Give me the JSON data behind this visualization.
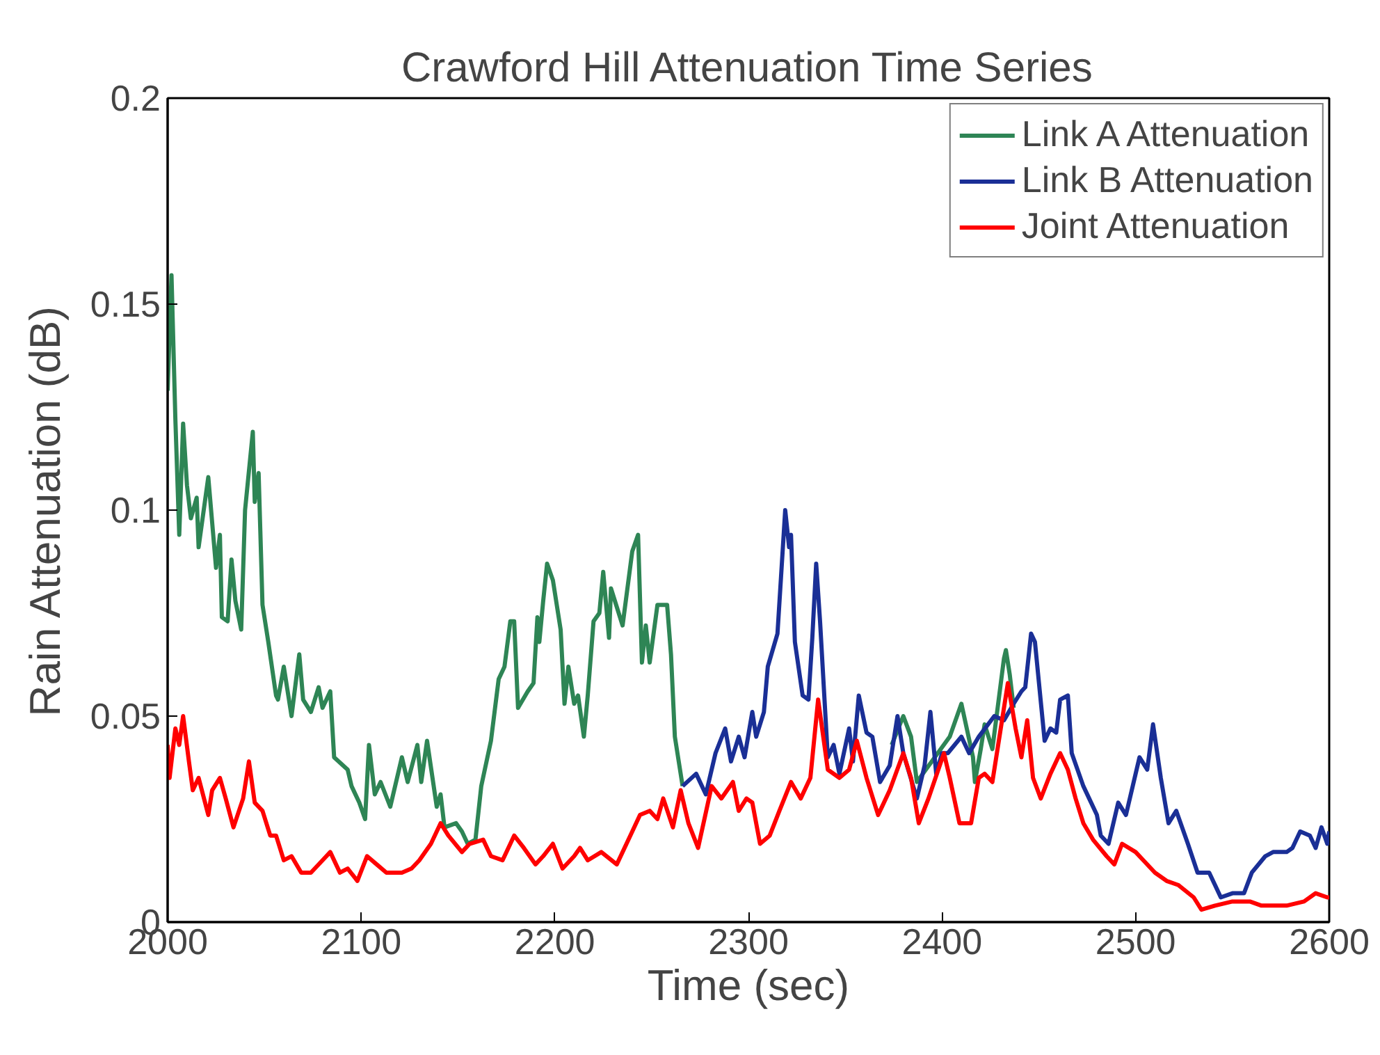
{
  "chart_data": {
    "type": "line",
    "title": "Crawford Hill Attenuation Time Series",
    "xlabel": "Time (sec)",
    "ylabel": "Rain Attenuation (dB)",
    "xlim": [
      2000,
      2600
    ],
    "xticks": [
      2000,
      2100,
      2200,
      2300,
      2400,
      2500,
      2600
    ],
    "ylim": [
      0,
      0.2
    ],
    "yticks": [
      0,
      0.05,
      0.1,
      0.15,
      0.2
    ],
    "grid": false,
    "legend": "top right",
    "line_style": "solid",
    "marker": "none",
    "series": [
      {
        "name": "Link A Attenuation",
        "color": "#2e8555",
        "x": [
          2000,
          2002,
          2004,
          2006,
          2008,
          2010,
          2012,
          2015,
          2016,
          2021,
          2023,
          2025,
          2027,
          2028,
          2031,
          2033,
          2035,
          2038,
          2040,
          2044,
          2045,
          2047,
          2049,
          2052,
          2056,
          2057,
          2060,
          2064,
          2068,
          2070,
          2074,
          2078,
          2080,
          2084,
          2086,
          2093,
          2095,
          2099,
          2102,
          2104,
          2107,
          2110,
          2115,
          2121,
          2124,
          2129,
          2131,
          2134,
          2139,
          2141,
          2143,
          2149,
          2152,
          2155,
          2159,
          2162,
          2167,
          2171,
          2174,
          2177,
          2179,
          2181,
          2186,
          2189,
          2191,
          2192,
          2194,
          2196,
          2199,
          2203,
          2205,
          2207,
          2210,
          2212,
          2215,
          2217,
          2220,
          2223,
          2225,
          2228,
          2229,
          2235,
          2240,
          2243,
          2245,
          2247,
          2249,
          2253,
          2258,
          2260,
          2262,
          2266,
          2320,
          2374,
          2380,
          2384,
          2387,
          2404,
          2410,
          2416,
          2417,
          2420,
          2422,
          2426,
          2432,
          2433,
          2435,
          2437
        ],
        "values": [
          0.129,
          0.157,
          0.122,
          0.094,
          0.121,
          0.106,
          0.098,
          0.103,
          0.091,
          0.108,
          0.097,
          0.086,
          0.094,
          0.074,
          0.073,
          0.088,
          0.078,
          0.071,
          0.1,
          0.119,
          0.102,
          0.109,
          0.077,
          0.068,
          0.055,
          0.054,
          0.062,
          0.05,
          0.065,
          0.054,
          0.051,
          0.057,
          0.052,
          0.056,
          0.04,
          0.037,
          0.033,
          0.029,
          0.025,
          0.043,
          0.031,
          0.034,
          0.028,
          0.04,
          0.034,
          0.043,
          0.034,
          0.044,
          0.028,
          0.031,
          0.023,
          0.024,
          0.022,
          0.019,
          0.02,
          0.033,
          0.044,
          0.059,
          0.062,
          0.073,
          0.073,
          0.052,
          0.056,
          0.058,
          0.074,
          0.068,
          0.078,
          0.087,
          0.083,
          0.071,
          0.053,
          0.062,
          0.053,
          0.055,
          0.045,
          0.055,
          0.073,
          0.075,
          0.085,
          0.069,
          0.081,
          0.072,
          0.09,
          0.094,
          0.063,
          0.072,
          0.063,
          0.077,
          0.077,
          0.065,
          0.045,
          0.033,
          null,
          0.043,
          0.05,
          0.045,
          0.034,
          0.045,
          0.053,
          0.04,
          0.034,
          0.042,
          0.048,
          0.042,
          0.064,
          0.066,
          0.06,
          0.052
        ]
      },
      {
        "name": "Link B Attenuation",
        "color": "#1a2f96",
        "x": [
          2266,
          2273,
          2278,
          2283,
          2288,
          2291,
          2295,
          2298,
          2302,
          2304,
          2308,
          2310,
          2315,
          2319,
          2321,
          2322,
          2324,
          2328,
          2331,
          2333,
          2335,
          2337,
          2341,
          2344,
          2347,
          2352,
          2354,
          2357,
          2361,
          2364,
          2368,
          2373,
          2377,
          2380,
          2387,
          2391,
          2394,
          2397,
          2400,
          2403,
          2410,
          2414,
          2419,
          2427,
          2432,
          2437,
          2441,
          2443,
          2446,
          2448,
          2453,
          2456,
          2459,
          2461,
          2465,
          2467,
          2473,
          2476,
          2480,
          2482,
          2486,
          2491,
          2495,
          2499,
          2502,
          2506,
          2509,
          2513,
          2517,
          2521,
          2527,
          2532,
          2538,
          2544,
          2550,
          2556,
          2560,
          2567,
          2571,
          2578,
          2581,
          2585,
          2590,
          2593,
          2596,
          2599,
          2600
        ],
        "values": [
          0.033,
          0.036,
          0.031,
          0.041,
          0.047,
          0.039,
          0.045,
          0.04,
          0.051,
          0.045,
          0.051,
          0.062,
          0.07,
          0.1,
          0.091,
          0.094,
          0.068,
          0.055,
          0.054,
          0.069,
          0.087,
          0.073,
          0.04,
          0.043,
          0.036,
          0.047,
          0.039,
          0.055,
          0.046,
          0.045,
          0.034,
          0.038,
          0.05,
          0.041,
          0.03,
          0.038,
          0.051,
          0.036,
          0.041,
          0.041,
          0.045,
          0.041,
          0.045,
          0.05,
          0.049,
          0.053,
          0.056,
          0.057,
          0.07,
          0.068,
          0.044,
          0.047,
          0.046,
          0.054,
          0.055,
          0.041,
          0.033,
          0.03,
          0.026,
          0.021,
          0.019,
          0.029,
          0.026,
          0.034,
          0.04,
          0.037,
          0.048,
          0.035,
          0.024,
          0.027,
          0.019,
          0.012,
          0.012,
          0.006,
          0.007,
          0.007,
          0.012,
          0.016,
          0.017,
          0.017,
          0.018,
          0.022,
          0.021,
          0.018,
          0.023,
          0.019,
          0.022
        ]
      },
      {
        "name": "Joint Attenuation",
        "color": "#ff0000",
        "x": [
          2000,
          2001,
          2004,
          2006,
          2008,
          2011,
          2013,
          2016,
          2021,
          2023,
          2027,
          2030,
          2034,
          2039,
          2042,
          2045,
          2049,
          2053,
          2056,
          2060,
          2064,
          2069,
          2074,
          2080,
          2084,
          2089,
          2093,
          2098,
          2103,
          2108,
          2113,
          2121,
          2126,
          2130,
          2136,
          2141,
          2145,
          2152,
          2156,
          2163,
          2167,
          2173,
          2179,
          2184,
          2190,
          2194,
          2199,
          2204,
          2210,
          2213,
          2217,
          2224,
          2232,
          2239,
          2244,
          2249,
          2253,
          2256,
          2261,
          2265,
          2269,
          2274,
          2281,
          2286,
          2292,
          2295,
          2299,
          2302,
          2306,
          2311,
          2316,
          2322,
          2327,
          2332,
          2336,
          2341,
          2347,
          2352,
          2356,
          2361,
          2367,
          2373,
          2380,
          2384,
          2388,
          2393,
          2401,
          2404,
          2409,
          2415,
          2419,
          2422,
          2426,
          2430,
          2434,
          2438,
          2441,
          2444,
          2447,
          2451,
          2456,
          2461,
          2465,
          2469,
          2473,
          2478,
          2485,
          2489,
          2493,
          2500,
          2504,
          2510,
          2516,
          2522,
          2530,
          2534,
          2541,
          2550,
          2559,
          2565,
          2578,
          2587,
          2593,
          2599,
          2600
        ],
        "values": [
          0.043,
          0.035,
          0.047,
          0.043,
          0.05,
          0.039,
          0.032,
          0.035,
          0.026,
          0.032,
          0.035,
          0.03,
          0.023,
          0.03,
          0.039,
          0.029,
          0.027,
          0.021,
          0.021,
          0.015,
          0.016,
          0.012,
          0.012,
          0.015,
          0.017,
          0.012,
          0.013,
          0.01,
          0.016,
          0.014,
          0.012,
          0.012,
          0.013,
          0.015,
          0.019,
          0.024,
          0.021,
          0.017,
          0.019,
          0.02,
          0.016,
          0.015,
          0.021,
          0.018,
          0.014,
          0.016,
          0.019,
          0.013,
          0.016,
          0.018,
          0.015,
          0.017,
          0.014,
          0.021,
          0.026,
          0.027,
          0.025,
          0.03,
          0.023,
          0.032,
          0.024,
          0.018,
          0.033,
          0.03,
          0.034,
          0.027,
          0.03,
          0.029,
          0.019,
          0.021,
          0.027,
          0.034,
          0.03,
          0.035,
          0.054,
          0.037,
          0.035,
          0.037,
          0.044,
          0.035,
          0.026,
          0.032,
          0.041,
          0.035,
          0.024,
          0.03,
          0.041,
          0.035,
          0.024,
          0.024,
          0.035,
          0.036,
          0.034,
          0.046,
          0.058,
          0.047,
          0.04,
          0.049,
          0.035,
          0.03,
          0.036,
          0.041,
          0.037,
          0.03,
          0.024,
          0.02,
          0.016,
          0.014,
          0.019,
          0.017,
          0.015,
          0.012,
          0.01,
          0.009,
          0.006,
          0.003,
          0.004,
          0.005,
          0.005,
          0.004,
          0.004,
          0.005,
          0.007,
          0.006,
          0.006
        ]
      }
    ]
  }
}
